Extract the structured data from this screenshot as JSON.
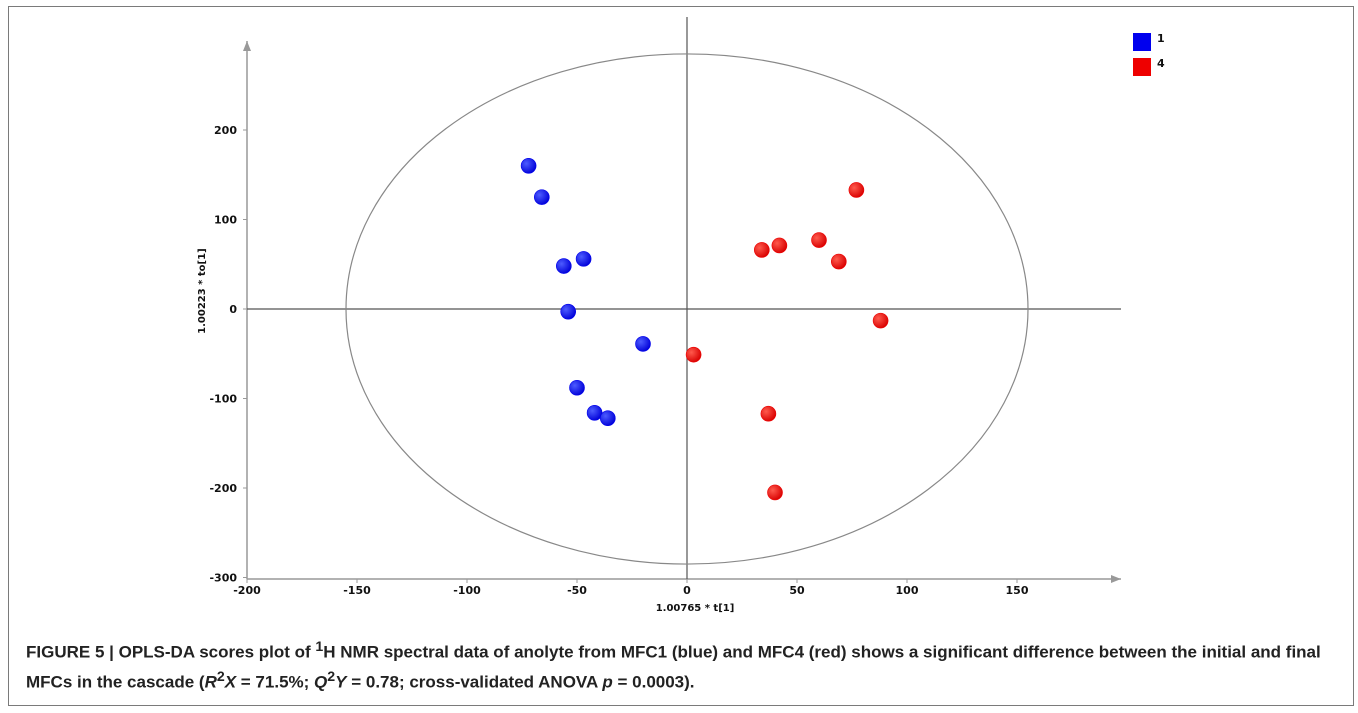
{
  "chart_data": {
    "type": "scatter",
    "title": "",
    "xlabel": "1.00765 * t[1]",
    "ylabel": "1.00223 * to[1]",
    "xlim": [
      -200,
      200
    ],
    "ylim": [
      -300,
      300
    ],
    "x_ticks": [
      "-200",
      "-150",
      "-100",
      "-50",
      "0",
      "50",
      "100",
      "150"
    ],
    "y_ticks": [
      "200",
      "100",
      "0",
      "-100",
      "-200",
      "-300"
    ],
    "x_tick_values": [
      -200,
      -150,
      -100,
      -50,
      0,
      50,
      100,
      150
    ],
    "y_tick_values": [
      200,
      100,
      0,
      -100,
      -200,
      -300
    ],
    "ellipse": {
      "rx": 155,
      "ry": 285
    },
    "legend_position": "top-right",
    "series": [
      {
        "name": "1",
        "color": "#0000ee",
        "points": [
          [
            -72,
            160
          ],
          [
            -66,
            125
          ],
          [
            -56,
            48
          ],
          [
            -47,
            56
          ],
          [
            -54,
            -3
          ],
          [
            -20,
            -39
          ],
          [
            -50,
            -88
          ],
          [
            -42,
            -116
          ],
          [
            -36,
            -122
          ]
        ]
      },
      {
        "name": "4",
        "color": "#ee0000",
        "points": [
          [
            77,
            133
          ],
          [
            34,
            66
          ],
          [
            42,
            71
          ],
          [
            60,
            77
          ],
          [
            69,
            53
          ],
          [
            88,
            -13
          ],
          [
            3,
            -51
          ],
          [
            37,
            -117
          ],
          [
            40,
            -205
          ]
        ]
      }
    ]
  },
  "caption": {
    "label": "FIGURE 5 | ",
    "part1": "OPLS-DA scores plot of ",
    "sup1": "1",
    "part2": "H NMR spectral data of anolyte from MFC1 (blue) and MFC4 (red) shows a significant difference between the initial and final MFCs in the cascade (",
    "r_letter": "R",
    "sup2": "2",
    "x_letter": "X",
    "part3": " = 71.5%; ",
    "q_letter": "Q",
    "sup3": "2",
    "y_letter": "Y",
    "part4": " = 0.78; cross-validated ANOVA ",
    "p_letter": "p",
    "part5": " = 0.0003)."
  }
}
